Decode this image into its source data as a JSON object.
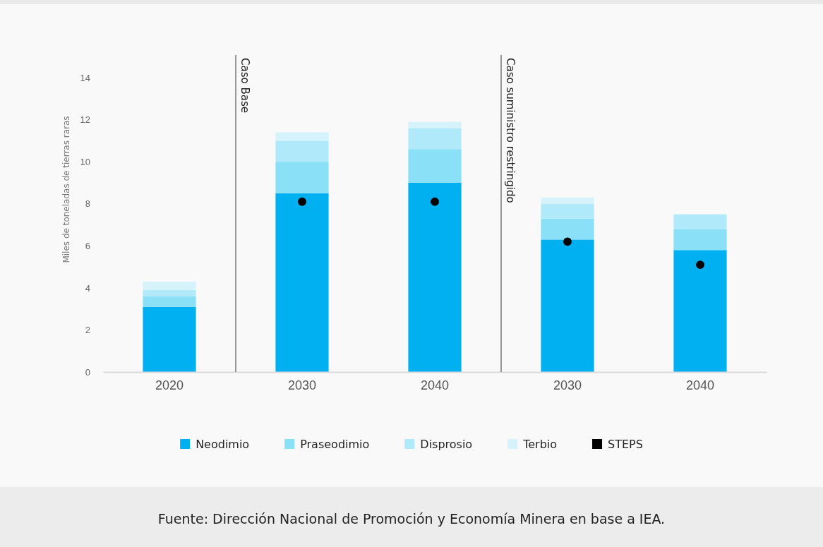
{
  "chart_data": {
    "type": "bar",
    "stacked": true,
    "ylabel": "Miles de toneladas de tierras raras",
    "categories": [
      "2020",
      "2030",
      "2040",
      "2030",
      "2040"
    ],
    "series": [
      {
        "name": "Neodimio",
        "color": "#00b0f0",
        "values": [
          3.1,
          8.5,
          9.0,
          6.3,
          5.8
        ]
      },
      {
        "name": "Praseodimio",
        "color": "#8ae0f7",
        "values": [
          0.5,
          1.5,
          1.6,
          1.0,
          1.0
        ]
      },
      {
        "name": "Disprosio",
        "color": "#b0eafa",
        "values": [
          0.3,
          1.0,
          1.0,
          0.7,
          0.7
        ]
      },
      {
        "name": "Terbio",
        "color": "#d6f2fa",
        "values": [
          0.4,
          0.4,
          0.3,
          0.3,
          null
        ]
      },
      {
        "name": "STEPS",
        "type": "scatter",
        "marker": "circle",
        "color": "#000000",
        "values": [
          null,
          8.1,
          8.1,
          6.2,
          5.1
        ]
      }
    ],
    "ylim": [
      0,
      14
    ],
    "yticks": [
      0,
      2,
      4,
      6,
      8,
      10,
      12,
      14
    ],
    "grid": false,
    "legend": "bottom",
    "annotations": [
      "Caso Base",
      "Caso suministro restringido",
      "Fuente: Dirección Nacional de Promoción y Economía Minera en base a IEA."
    ]
  }
}
